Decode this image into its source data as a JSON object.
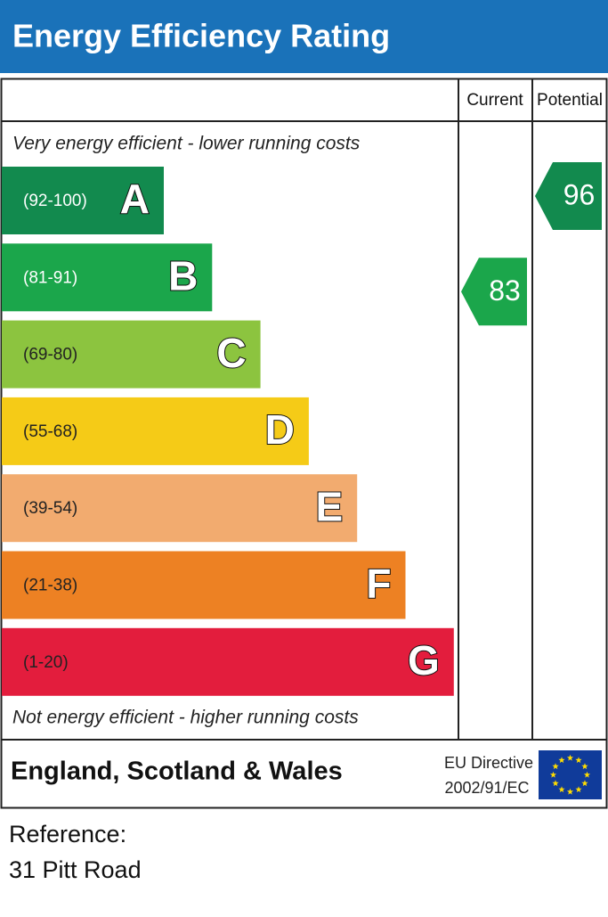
{
  "title": "Energy Efficiency Rating",
  "header": {
    "current": "Current",
    "potential": "Potential"
  },
  "top_note": "Very energy efficient - lower running costs",
  "bands": [
    {
      "range": "(92-100)",
      "letter": "A",
      "color": "#128a4e"
    },
    {
      "range": "(81-91)",
      "letter": "B",
      "color": "#1ba64b"
    },
    {
      "range": "(69-80)",
      "letter": "C",
      "color": "#8cc43f"
    },
    {
      "range": "(55-68)",
      "letter": "D",
      "color": "#f5cb17"
    },
    {
      "range": "(39-54)",
      "letter": "E",
      "color": "#f2ab6f"
    },
    {
      "range": "(21-38)",
      "letter": "F",
      "color": "#ed8123"
    },
    {
      "range": "(1-20)",
      "letter": "G",
      "color": "#e31d3d"
    }
  ],
  "bottom_note": "Not energy efficient - higher running costs",
  "current": {
    "value": 83,
    "color": "#1ba64b"
  },
  "potential": {
    "value": 96,
    "color": "#128a4e"
  },
  "footer": {
    "region": "England, Scotland & Wales",
    "directive": [
      "EU Directive",
      "2002/91/EC"
    ]
  },
  "reference": [
    "Reference:",
    "31 Pitt Road"
  ]
}
